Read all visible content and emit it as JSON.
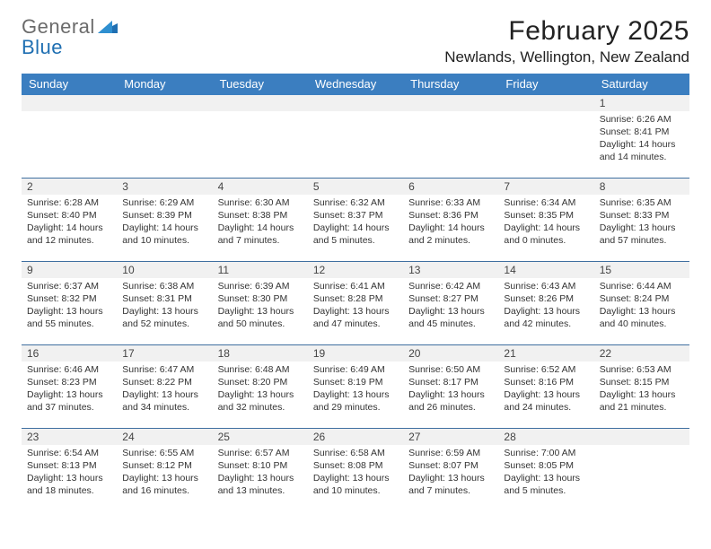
{
  "logo": {
    "word1": "General",
    "word2": "Blue"
  },
  "title": "February 2025",
  "location": "Newlands, Wellington, New Zealand",
  "colors": {
    "header_bg": "#3b7ec0",
    "header_text": "#ffffff",
    "rule": "#3f6fa0",
    "daynum_bg": "#f1f1f1",
    "logo_gray": "#6b6b6b",
    "logo_blue": "#1f6fb2"
  },
  "day_headers": [
    "Sunday",
    "Monday",
    "Tuesday",
    "Wednesday",
    "Thursday",
    "Friday",
    "Saturday"
  ],
  "weeks": [
    [
      null,
      null,
      null,
      null,
      null,
      null,
      {
        "n": "1",
        "sunrise": "Sunrise: 6:26 AM",
        "sunset": "Sunset: 8:41 PM",
        "day1": "Daylight: 14 hours",
        "day2": "and 14 minutes."
      }
    ],
    [
      {
        "n": "2",
        "sunrise": "Sunrise: 6:28 AM",
        "sunset": "Sunset: 8:40 PM",
        "day1": "Daylight: 14 hours",
        "day2": "and 12 minutes."
      },
      {
        "n": "3",
        "sunrise": "Sunrise: 6:29 AM",
        "sunset": "Sunset: 8:39 PM",
        "day1": "Daylight: 14 hours",
        "day2": "and 10 minutes."
      },
      {
        "n": "4",
        "sunrise": "Sunrise: 6:30 AM",
        "sunset": "Sunset: 8:38 PM",
        "day1": "Daylight: 14 hours",
        "day2": "and 7 minutes."
      },
      {
        "n": "5",
        "sunrise": "Sunrise: 6:32 AM",
        "sunset": "Sunset: 8:37 PM",
        "day1": "Daylight: 14 hours",
        "day2": "and 5 minutes."
      },
      {
        "n": "6",
        "sunrise": "Sunrise: 6:33 AM",
        "sunset": "Sunset: 8:36 PM",
        "day1": "Daylight: 14 hours",
        "day2": "and 2 minutes."
      },
      {
        "n": "7",
        "sunrise": "Sunrise: 6:34 AM",
        "sunset": "Sunset: 8:35 PM",
        "day1": "Daylight: 14 hours",
        "day2": "and 0 minutes."
      },
      {
        "n": "8",
        "sunrise": "Sunrise: 6:35 AM",
        "sunset": "Sunset: 8:33 PM",
        "day1": "Daylight: 13 hours",
        "day2": "and 57 minutes."
      }
    ],
    [
      {
        "n": "9",
        "sunrise": "Sunrise: 6:37 AM",
        "sunset": "Sunset: 8:32 PM",
        "day1": "Daylight: 13 hours",
        "day2": "and 55 minutes."
      },
      {
        "n": "10",
        "sunrise": "Sunrise: 6:38 AM",
        "sunset": "Sunset: 8:31 PM",
        "day1": "Daylight: 13 hours",
        "day2": "and 52 minutes."
      },
      {
        "n": "11",
        "sunrise": "Sunrise: 6:39 AM",
        "sunset": "Sunset: 8:30 PM",
        "day1": "Daylight: 13 hours",
        "day2": "and 50 minutes."
      },
      {
        "n": "12",
        "sunrise": "Sunrise: 6:41 AM",
        "sunset": "Sunset: 8:28 PM",
        "day1": "Daylight: 13 hours",
        "day2": "and 47 minutes."
      },
      {
        "n": "13",
        "sunrise": "Sunrise: 6:42 AM",
        "sunset": "Sunset: 8:27 PM",
        "day1": "Daylight: 13 hours",
        "day2": "and 45 minutes."
      },
      {
        "n": "14",
        "sunrise": "Sunrise: 6:43 AM",
        "sunset": "Sunset: 8:26 PM",
        "day1": "Daylight: 13 hours",
        "day2": "and 42 minutes."
      },
      {
        "n": "15",
        "sunrise": "Sunrise: 6:44 AM",
        "sunset": "Sunset: 8:24 PM",
        "day1": "Daylight: 13 hours",
        "day2": "and 40 minutes."
      }
    ],
    [
      {
        "n": "16",
        "sunrise": "Sunrise: 6:46 AM",
        "sunset": "Sunset: 8:23 PM",
        "day1": "Daylight: 13 hours",
        "day2": "and 37 minutes."
      },
      {
        "n": "17",
        "sunrise": "Sunrise: 6:47 AM",
        "sunset": "Sunset: 8:22 PM",
        "day1": "Daylight: 13 hours",
        "day2": "and 34 minutes."
      },
      {
        "n": "18",
        "sunrise": "Sunrise: 6:48 AM",
        "sunset": "Sunset: 8:20 PM",
        "day1": "Daylight: 13 hours",
        "day2": "and 32 minutes."
      },
      {
        "n": "19",
        "sunrise": "Sunrise: 6:49 AM",
        "sunset": "Sunset: 8:19 PM",
        "day1": "Daylight: 13 hours",
        "day2": "and 29 minutes."
      },
      {
        "n": "20",
        "sunrise": "Sunrise: 6:50 AM",
        "sunset": "Sunset: 8:17 PM",
        "day1": "Daylight: 13 hours",
        "day2": "and 26 minutes."
      },
      {
        "n": "21",
        "sunrise": "Sunrise: 6:52 AM",
        "sunset": "Sunset: 8:16 PM",
        "day1": "Daylight: 13 hours",
        "day2": "and 24 minutes."
      },
      {
        "n": "22",
        "sunrise": "Sunrise: 6:53 AM",
        "sunset": "Sunset: 8:15 PM",
        "day1": "Daylight: 13 hours",
        "day2": "and 21 minutes."
      }
    ],
    [
      {
        "n": "23",
        "sunrise": "Sunrise: 6:54 AM",
        "sunset": "Sunset: 8:13 PM",
        "day1": "Daylight: 13 hours",
        "day2": "and 18 minutes."
      },
      {
        "n": "24",
        "sunrise": "Sunrise: 6:55 AM",
        "sunset": "Sunset: 8:12 PM",
        "day1": "Daylight: 13 hours",
        "day2": "and 16 minutes."
      },
      {
        "n": "25",
        "sunrise": "Sunrise: 6:57 AM",
        "sunset": "Sunset: 8:10 PM",
        "day1": "Daylight: 13 hours",
        "day2": "and 13 minutes."
      },
      {
        "n": "26",
        "sunrise": "Sunrise: 6:58 AM",
        "sunset": "Sunset: 8:08 PM",
        "day1": "Daylight: 13 hours",
        "day2": "and 10 minutes."
      },
      {
        "n": "27",
        "sunrise": "Sunrise: 6:59 AM",
        "sunset": "Sunset: 8:07 PM",
        "day1": "Daylight: 13 hours",
        "day2": "and 7 minutes."
      },
      {
        "n": "28",
        "sunrise": "Sunrise: 7:00 AM",
        "sunset": "Sunset: 8:05 PM",
        "day1": "Daylight: 13 hours",
        "day2": "and 5 minutes."
      },
      null
    ]
  ]
}
